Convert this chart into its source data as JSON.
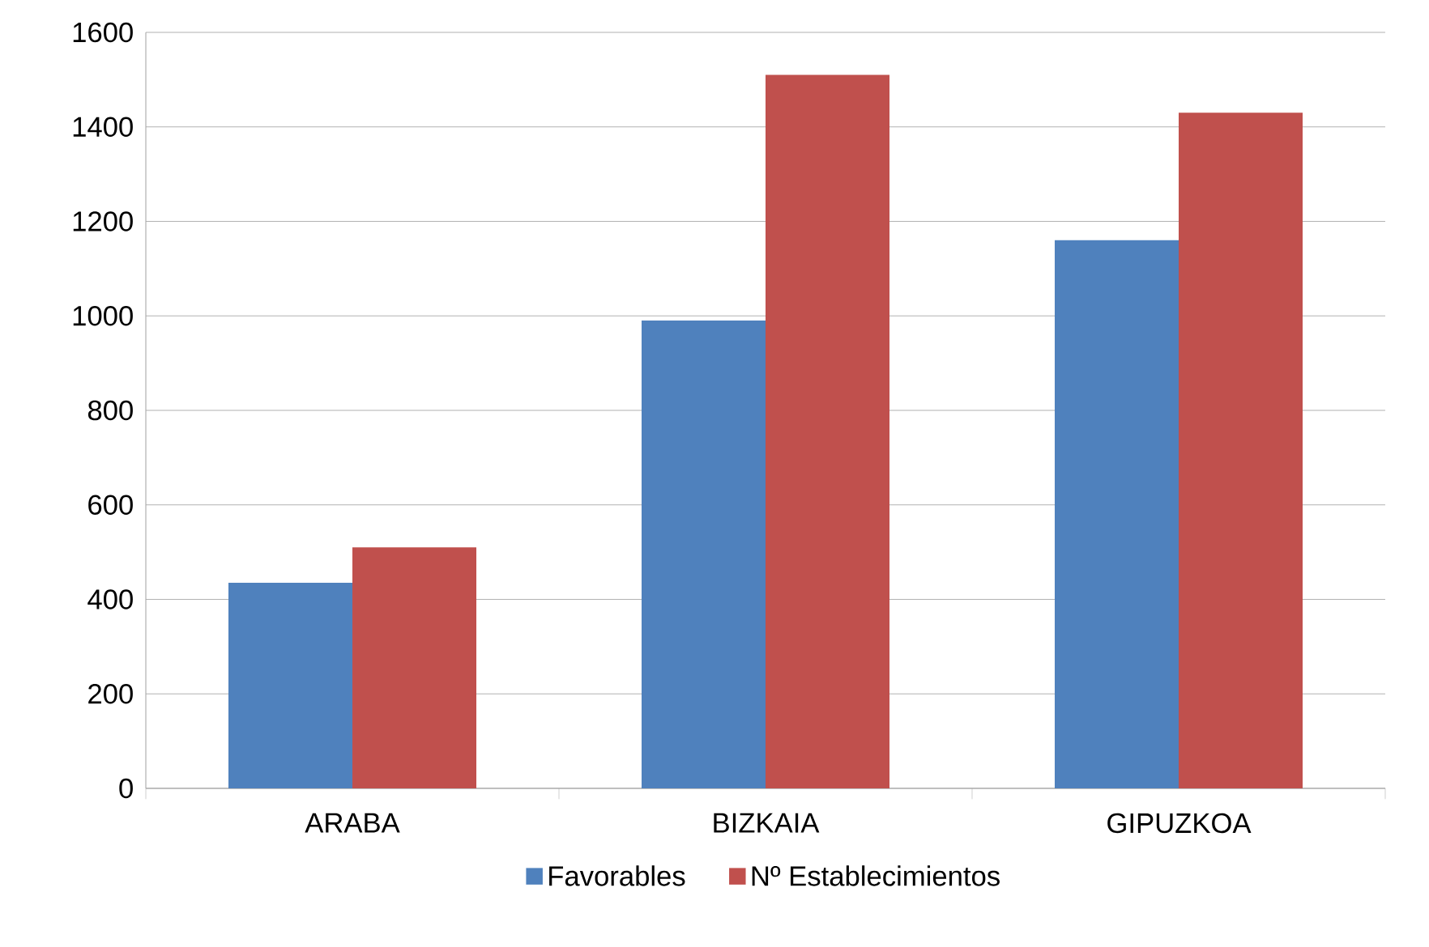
{
  "chart_data": {
    "type": "bar",
    "categories": [
      "ARABA",
      "BIZKAIA",
      "GIPUZKOA"
    ],
    "series": [
      {
        "name": "Favorables",
        "color": "#4f81bd",
        "values": [
          435,
          990,
          1160
        ]
      },
      {
        "name": "Nº Establecimientos",
        "color": "#c0504d",
        "values": [
          510,
          1510,
          1430
        ]
      }
    ],
    "ylim": [
      0,
      1600
    ],
    "yticks": [
      0,
      200,
      400,
      600,
      800,
      1000,
      1200,
      1400,
      1600
    ],
    "grid": "y",
    "legend": "bottom"
  }
}
